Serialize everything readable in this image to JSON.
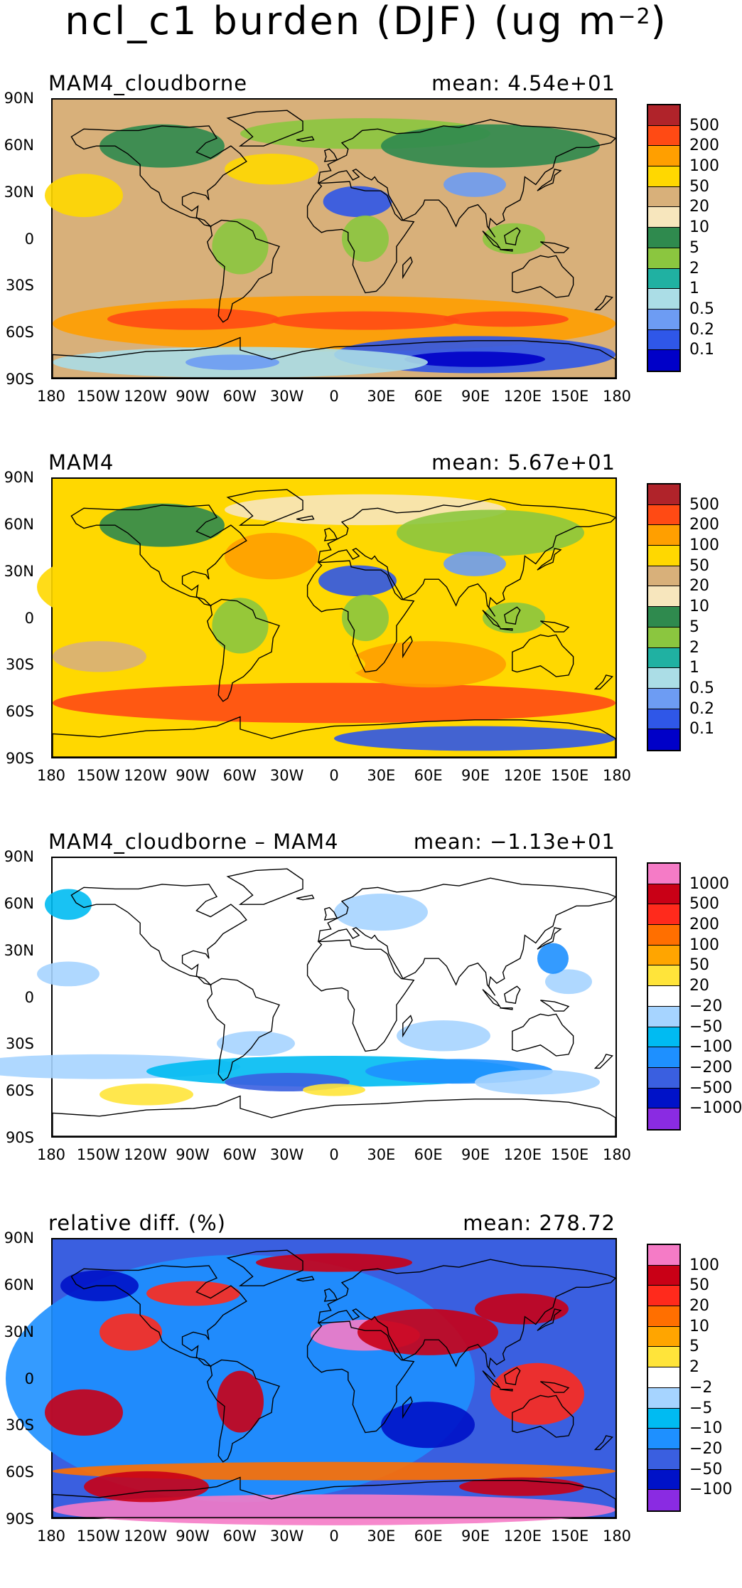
{
  "title": {
    "text": "ncl_c1 burden (DJF) (ug m",
    "exp": "−2",
    "close": ")"
  },
  "lat_labels": [
    "90N",
    "60N",
    "30N",
    "0",
    "30S",
    "60S",
    "90S"
  ],
  "lon_labels": [
    "180",
    "150W",
    "120W",
    "90W",
    "60W",
    "30W",
    "0",
    "30E",
    "60E",
    "90E",
    "120E",
    "150E",
    "180"
  ],
  "panels": [
    {
      "id": "cloudborne",
      "left_label": "MAM4_cloudborne",
      "right_label": "mean: 4.54e+01",
      "colorbar": {
        "labels": [
          "500",
          "200",
          "100",
          "50",
          "20",
          "10",
          "5",
          "2",
          "1",
          "0.5",
          "0.2",
          "0.1"
        ],
        "colors": [
          "#b0232a",
          "#ff4a14",
          "#ff9f00",
          "#ffd800",
          "#d8b07a",
          "#f7e6bd",
          "#2f8a4e",
          "#8bc63f",
          "#20b1a2",
          "#abdde6",
          "#6d9cf3",
          "#2f57e8",
          "#0000c8"
        ]
      }
    },
    {
      "id": "mam4",
      "left_label": "MAM4",
      "right_label": "mean: 5.67e+01",
      "colorbar": {
        "labels": [
          "500",
          "200",
          "100",
          "50",
          "20",
          "10",
          "5",
          "2",
          "1",
          "0.5",
          "0.2",
          "0.1"
        ],
        "colors": [
          "#b0232a",
          "#ff4a14",
          "#ff9f00",
          "#ffd800",
          "#d8b07a",
          "#f7e6bd",
          "#2f8a4e",
          "#8bc63f",
          "#20b1a2",
          "#abdde6",
          "#6d9cf3",
          "#2f57e8",
          "#0000c8"
        ]
      }
    },
    {
      "id": "diff",
      "left_label": "MAM4_cloudborne – MAM4",
      "right_label": "mean: −1.13e+01",
      "colorbar": {
        "labels": [
          "1000",
          "500",
          "200",
          "100",
          "50",
          "20",
          "−20",
          "−50",
          "−100",
          "−200",
          "−500",
          "−1000"
        ],
        "colors": [
          "#f57bc6",
          "#c90016",
          "#ff2a1c",
          "#ff6f00",
          "#ffa500",
          "#ffe43a",
          "#ffffff",
          "#a6d4ff",
          "#00bbf2",
          "#1e90ff",
          "#3a5fe0",
          "#0012c8",
          "#8a2be2"
        ]
      }
    },
    {
      "id": "reldiff",
      "left_label": "relative diff. (%)",
      "right_label": "mean: 278.72",
      "colorbar": {
        "labels": [
          "100",
          "50",
          "20",
          "10",
          "5",
          "2",
          "−2",
          "−5",
          "−10",
          "−20",
          "−50",
          "−100"
        ],
        "colors": [
          "#f57bc6",
          "#c90016",
          "#ff2a1c",
          "#ff6f00",
          "#ffa500",
          "#ffe43a",
          "#ffffff",
          "#a6d4ff",
          "#00bbf2",
          "#1e90ff",
          "#3a5fe0",
          "#0012c8",
          "#8a2be2"
        ]
      }
    }
  ]
}
